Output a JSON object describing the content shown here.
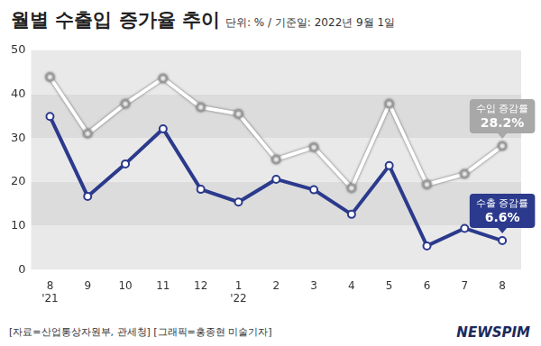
{
  "chart_data": {
    "type": "line",
    "title": "월별 수출입 증가율 추이",
    "subtitle": "단위: % / 기준일: 2022년 9월 1일",
    "source": "[자료=산업통상자원부, 관세청] [그래픽=홍종현 미술기자]",
    "logo": "NEWSPIM",
    "categories": [
      [
        "8",
        "'21"
      ],
      "9",
      "10",
      "11",
      "12",
      [
        "1",
        "'22"
      ],
      "2",
      "3",
      "4",
      "5",
      "6",
      "7",
      "8"
    ],
    "series": [
      {
        "name": "수입 증감률",
        "color": "#ffffff",
        "marker": "circle",
        "values": [
          43.9,
          31.0,
          37.8,
          43.6,
          37.0,
          35.5,
          25.1,
          27.9,
          18.6,
          37.8,
          19.4,
          21.8,
          28.2
        ],
        "value_labels": [
          null,
          null,
          null,
          null,
          null,
          null,
          null,
          null,
          null,
          null,
          null,
          null,
          "28.2%"
        ]
      },
      {
        "name": "수출 증감률",
        "color": "#2b3a8c",
        "marker": "circle",
        "values": [
          34.9,
          16.7,
          24.1,
          32.1,
          18.3,
          15.4,
          20.6,
          18.2,
          12.6,
          23.7,
          5.4,
          9.4,
          6.6
        ],
        "value_labels": [
          null,
          null,
          null,
          null,
          null,
          null,
          null,
          null,
          null,
          null,
          null,
          null,
          "6.6%"
        ]
      }
    ],
    "ylim": [
      0,
      50
    ],
    "yticks": [
      0,
      10,
      20,
      30,
      40,
      50
    ],
    "grid": true
  }
}
